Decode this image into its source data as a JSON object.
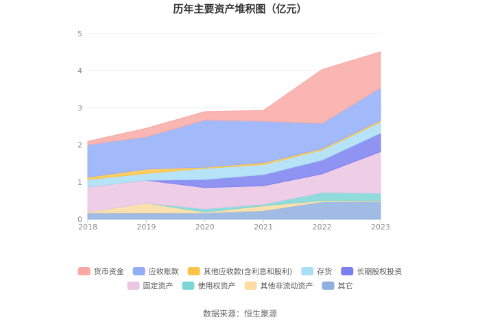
{
  "chart_data": {
    "type": "area",
    "stacked": true,
    "title": "历年主要资产堆积图（亿元）",
    "x": [
      "2018",
      "2019",
      "2020",
      "2021",
      "2022",
      "2023"
    ],
    "ylim": [
      0,
      5
    ],
    "yticks": [
      0,
      1,
      2,
      3,
      4,
      5
    ],
    "grid": true,
    "legend_position": "bottom",
    "series": [
      {
        "name": "其它",
        "color": "#8fb0e0",
        "values": [
          0.17,
          0.17,
          0.17,
          0.23,
          0.47,
          0.48
        ]
      },
      {
        "name": "其他非流动资产",
        "color": "#fcdca0",
        "values": [
          0.02,
          0.26,
          0.02,
          0.13,
          0.03,
          0.02
        ]
      },
      {
        "name": "使用权资产",
        "color": "#7dd6d6",
        "values": [
          0.0,
          0.0,
          0.09,
          0.04,
          0.22,
          0.2
        ]
      },
      {
        "name": "固定资产",
        "color": "#ebc5e3",
        "values": [
          0.68,
          0.62,
          0.57,
          0.5,
          0.5,
          1.12
        ]
      },
      {
        "name": "长期股权投资",
        "color": "#7b80ee",
        "values": [
          0.0,
          0.0,
          0.22,
          0.3,
          0.37,
          0.5
        ]
      },
      {
        "name": "存货",
        "color": "#a9def7",
        "values": [
          0.2,
          0.18,
          0.3,
          0.27,
          0.27,
          0.3
        ]
      },
      {
        "name": "其他应收款(含利息和股利)",
        "color": "#fcc44a",
        "values": [
          0.06,
          0.12,
          0.03,
          0.05,
          0.04,
          0.04
        ]
      },
      {
        "name": "应收账款",
        "color": "#93aef9",
        "values": [
          0.87,
          0.87,
          1.27,
          1.12,
          0.68,
          0.88
        ]
      },
      {
        "name": "货币资金",
        "color": "#f9a9a4",
        "values": [
          0.1,
          0.23,
          0.23,
          0.29,
          1.45,
          0.97
        ]
      }
    ],
    "legend_order": [
      "货币资金",
      "应收账款",
      "其他应收款(含利息和股利)",
      "存货",
      "长期股权投资",
      "固定资产",
      "使用权资产",
      "其他非流动资产",
      "其它"
    ]
  },
  "source_text": "数据来源：恒生聚源"
}
